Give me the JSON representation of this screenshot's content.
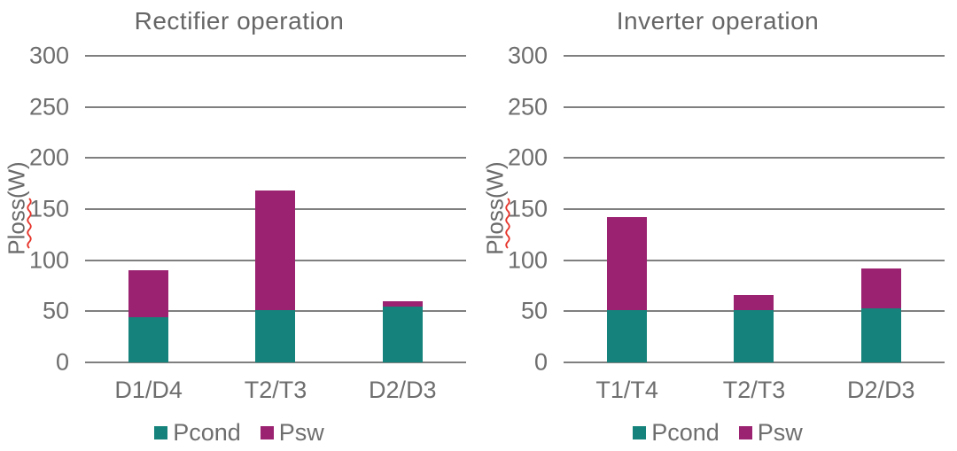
{
  "colors": {
    "pcond": "#15837B",
    "psw": "#9B2271",
    "grid": "#7F7F7F",
    "text": "#6E6E6E",
    "squiggle": "#E63329"
  },
  "chart_data": [
    {
      "type": "bar",
      "stacked": true,
      "title": "Rectifier operation",
      "xlabel": "",
      "ylabel": "Ploss(W)",
      "ylim": [
        0,
        300
      ],
      "yticks": [
        0,
        50,
        100,
        150,
        200,
        250,
        300
      ],
      "grid": true,
      "legend_position": "bottom",
      "categories": [
        "D1/D4",
        "T2/T3",
        "D2/D3"
      ],
      "series": [
        {
          "name": "Pcond",
          "color": "#15837B",
          "values": [
            44,
            51,
            55
          ]
        },
        {
          "name": "Psw",
          "color": "#9B2271",
          "values": [
            46,
            117,
            5
          ]
        }
      ],
      "totals": [
        90,
        168,
        60
      ]
    },
    {
      "type": "bar",
      "stacked": true,
      "title": "Inverter operation",
      "xlabel": "",
      "ylabel": "Ploss(W)",
      "ylim": [
        0,
        300
      ],
      "yticks": [
        0,
        50,
        100,
        150,
        200,
        250,
        300
      ],
      "grid": true,
      "legend_position": "bottom",
      "categories": [
        "T1/T4",
        "T2/T3",
        "D2/D3"
      ],
      "series": [
        {
          "name": "Pcond",
          "color": "#15837B",
          "values": [
            51,
            51,
            53
          ]
        },
        {
          "name": "Psw",
          "color": "#9B2271",
          "values": [
            91,
            15,
            39
          ]
        }
      ],
      "totals": [
        142,
        66,
        92
      ]
    }
  ]
}
